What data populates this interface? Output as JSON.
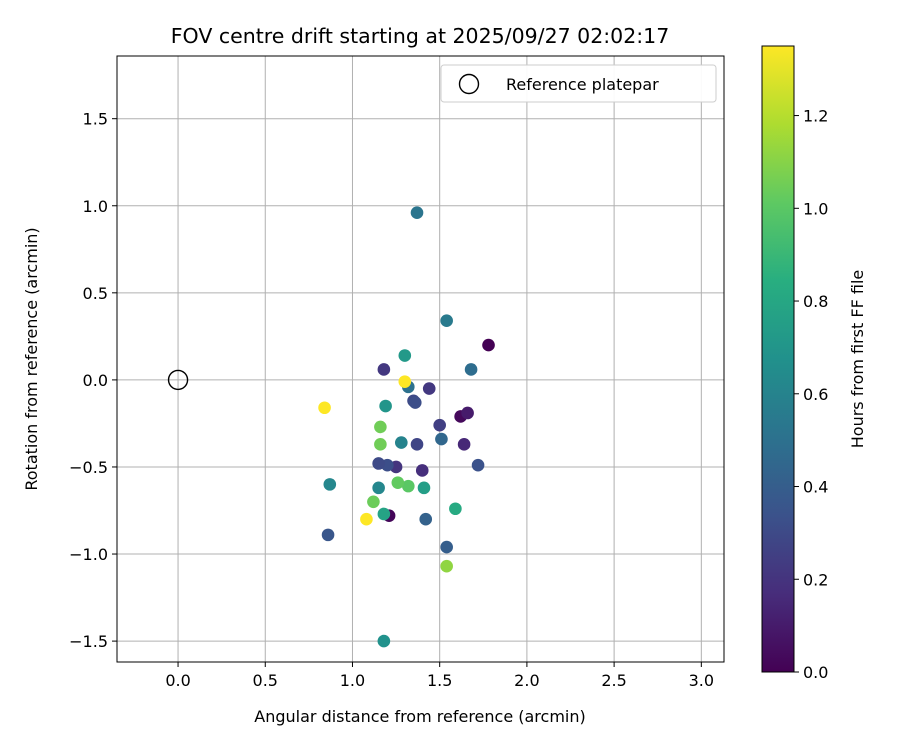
{
  "chart_data": {
    "type": "scatter",
    "title": "FOV centre drift starting at 2025/09/27 02:02:17",
    "xlabel": "Angular distance from reference (arcmin)",
    "ylabel": "Rotation from reference (arcmin)",
    "xlim": [
      -0.35,
      3.13
    ],
    "ylim": [
      -1.62,
      1.86
    ],
    "xticks": [
      0.0,
      0.5,
      1.0,
      1.5,
      2.0,
      2.5,
      3.0
    ],
    "xtick_labels": [
      "0.0",
      "0.5",
      "1.0",
      "1.5",
      "2.0",
      "2.5",
      "3.0"
    ],
    "yticks": [
      -1.5,
      -1.0,
      -0.5,
      0.0,
      0.5,
      1.0,
      1.5
    ],
    "ytick_labels": [
      "−1.5",
      "−1.0",
      "−0.5",
      "0.0",
      "0.5",
      "1.0",
      "1.5"
    ],
    "grid": true,
    "legend": {
      "label": "Reference platepar",
      "placement": "top-right"
    },
    "reference_point": {
      "x": 0.0,
      "y": 0.0
    },
    "colorbar": {
      "label": "Hours from first FF file",
      "colormap": "viridis",
      "range": [
        0.0,
        1.35
      ],
      "ticks": [
        0.0,
        0.2,
        0.4,
        0.6,
        0.8,
        1.0,
        1.2
      ],
      "tick_labels": [
        "0.0",
        "0.2",
        "0.4",
        "0.6",
        "0.8",
        "1.0",
        "1.2"
      ]
    },
    "points": [
      {
        "x": 1.78,
        "y": 0.2,
        "t": 0.0
      },
      {
        "x": 1.62,
        "y": -0.21,
        "t": 0.03
      },
      {
        "x": 1.21,
        "y": -0.78,
        "t": 0.02
      },
      {
        "x": 1.66,
        "y": -0.19,
        "t": 0.1
      },
      {
        "x": 1.64,
        "y": -0.37,
        "t": 0.15
      },
      {
        "x": 1.4,
        "y": -0.52,
        "t": 0.18
      },
      {
        "x": 1.25,
        "y": -0.5,
        "t": 0.2
      },
      {
        "x": 1.18,
        "y": 0.06,
        "t": 0.22
      },
      {
        "x": 1.44,
        "y": -0.05,
        "t": 0.22
      },
      {
        "x": 1.5,
        "y": -0.26,
        "t": 0.25
      },
      {
        "x": 1.37,
        "y": -0.37,
        "t": 0.28
      },
      {
        "x": 1.35,
        "y": -0.12,
        "t": 0.3
      },
      {
        "x": 1.36,
        "y": -0.13,
        "t": 0.32
      },
      {
        "x": 1.2,
        "y": -0.49,
        "t": 0.32
      },
      {
        "x": 1.15,
        "y": -0.48,
        "t": 0.3
      },
      {
        "x": 1.72,
        "y": -0.49,
        "t": 0.34
      },
      {
        "x": 0.86,
        "y": -0.89,
        "t": 0.36
      },
      {
        "x": 1.54,
        "y": -0.96,
        "t": 0.4
      },
      {
        "x": 1.42,
        "y": -0.8,
        "t": 0.42
      },
      {
        "x": 1.51,
        "y": -0.34,
        "t": 0.45
      },
      {
        "x": 1.68,
        "y": 0.06,
        "t": 0.48
      },
      {
        "x": 1.32,
        "y": -0.04,
        "t": 0.5
      },
      {
        "x": 1.37,
        "y": 0.96,
        "t": 0.52
      },
      {
        "x": 1.54,
        "y": 0.34,
        "t": 0.55
      },
      {
        "x": 1.28,
        "y": -0.36,
        "t": 0.6
      },
      {
        "x": 0.87,
        "y": -0.6,
        "t": 0.62
      },
      {
        "x": 1.15,
        "y": -0.62,
        "t": 0.62
      },
      {
        "x": 1.18,
        "y": -1.5,
        "t": 0.68
      },
      {
        "x": 1.19,
        "y": -0.15,
        "t": 0.7
      },
      {
        "x": 1.3,
        "y": 0.14,
        "t": 0.72
      },
      {
        "x": 1.41,
        "y": -0.62,
        "t": 0.75
      },
      {
        "x": 1.18,
        "y": -0.77,
        "t": 0.78
      },
      {
        "x": 1.59,
        "y": -0.74,
        "t": 0.82
      },
      {
        "x": 1.32,
        "y": -0.61,
        "t": 1.0
      },
      {
        "x": 1.26,
        "y": -0.59,
        "t": 1.02
      },
      {
        "x": 1.12,
        "y": -0.7,
        "t": 1.04
      },
      {
        "x": 1.16,
        "y": -0.37,
        "t": 1.05
      },
      {
        "x": 1.16,
        "y": -0.27,
        "t": 1.05
      },
      {
        "x": 1.54,
        "y": -1.07,
        "t": 1.12
      },
      {
        "x": 0.84,
        "y": -0.16,
        "t": 1.35
      },
      {
        "x": 1.08,
        "y": -0.8,
        "t": 1.35
      },
      {
        "x": 1.3,
        "y": -0.01,
        "t": 1.35
      }
    ]
  }
}
